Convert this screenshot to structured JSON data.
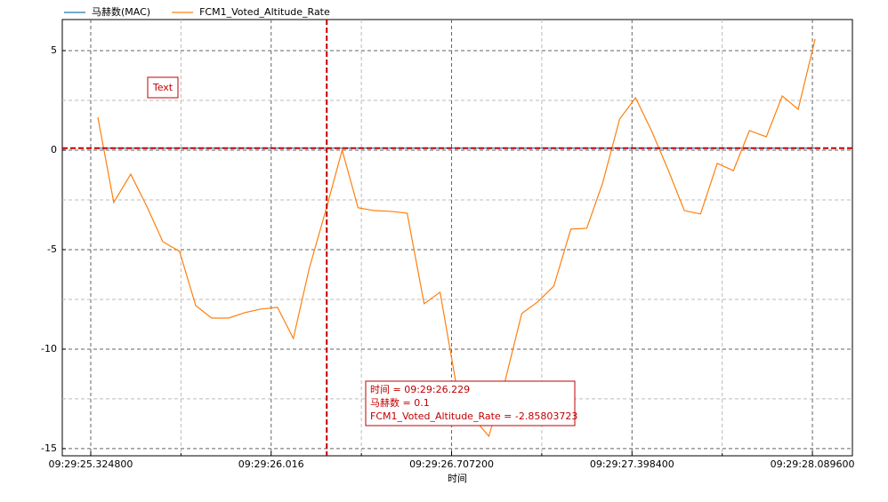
{
  "chart_data": {
    "type": "line",
    "x_label": "时间",
    "x": [
      25.352,
      25.413,
      25.478,
      25.539,
      25.601,
      25.665,
      25.727,
      25.788,
      25.853,
      25.914,
      25.975,
      26.04,
      26.101,
      26.162,
      26.229,
      26.288,
      26.349,
      26.411,
      26.476,
      26.537,
      26.602,
      26.663,
      26.724,
      26.789,
      26.85,
      26.911,
      26.976,
      27.037,
      27.099,
      27.164,
      27.225,
      27.286,
      27.351,
      27.412,
      27.473,
      27.538,
      27.599,
      27.661,
      27.725,
      27.787,
      27.848,
      27.913,
      27.974,
      28.035,
      28.1
    ],
    "series": [
      {
        "name": "马赫数(MAC)",
        "color": "#1f77b4",
        "values": [
          0.1,
          0.1,
          0.1,
          0.1,
          0.1,
          0.1,
          0.1,
          0.1,
          0.1,
          0.1,
          0.1,
          0.1,
          0.1,
          0.1,
          0.1,
          0.1,
          0.1,
          0.1,
          0.1,
          0.1,
          0.1,
          0.1,
          0.1,
          0.1,
          0.1,
          0.1,
          0.1,
          0.1,
          0.1,
          0.1,
          0.1,
          0.1,
          0.1,
          0.1,
          0.1,
          0.1,
          0.1,
          0.1,
          0.1,
          0.1,
          0.1,
          0.1,
          0.1,
          0.1,
          0.1
        ]
      },
      {
        "name": "FCM1_Voted_Altitude_Rate",
        "color": "#ff7f0e",
        "values": [
          1.65,
          -2.63,
          -1.21,
          -2.81,
          -4.6,
          -5.09,
          -7.81,
          -8.44,
          -8.44,
          -8.17,
          -7.99,
          -7.9,
          -9.46,
          -5.94,
          -2.858,
          0.0,
          -2.9,
          -3.04,
          -3.08,
          -3.17,
          -7.72,
          -7.14,
          -11.7,
          -13.44,
          -14.38,
          -11.66,
          -8.21,
          -7.63,
          -6.83,
          -3.97,
          -3.93,
          -1.65,
          1.56,
          2.63,
          0.98,
          -1.03,
          -3.04,
          -3.21,
          -0.67,
          -1.03,
          0.98,
          0.67,
          2.72,
          2.05,
          5.58
        ]
      }
    ],
    "xlim": [
      25.2158,
      28.2428
    ],
    "xticks": [
      {
        "value": 25.3248,
        "label": "09:29:25.324800"
      },
      {
        "value": 26.016,
        "label": "09:29:26.016"
      },
      {
        "value": 26.7072,
        "label": "09:29:26.707200"
      },
      {
        "value": 27.3984,
        "label": "09:29:27.398400"
      },
      {
        "value": 28.0896,
        "label": "09:29:28.089600"
      }
    ],
    "minor_xticks": [
      25.6704,
      26.3616,
      27.0528,
      27.744
    ],
    "ylim": [
      -15.36,
      6.56
    ],
    "yticks": [
      5,
      0,
      -5,
      -10,
      -15
    ],
    "minor_yticks": [
      2.5,
      -2.5,
      -7.5,
      -12.5
    ],
    "grid": true,
    "cursor": {
      "x": 26.229,
      "y": 0.1,
      "color": "#c00000",
      "lines": [
        "时间 = 09:29:26.229",
        "马赫数 = 0.1",
        "FCM1_Voted_Altitude_Rate = -2.85803723"
      ]
    },
    "annotation": "Text"
  }
}
